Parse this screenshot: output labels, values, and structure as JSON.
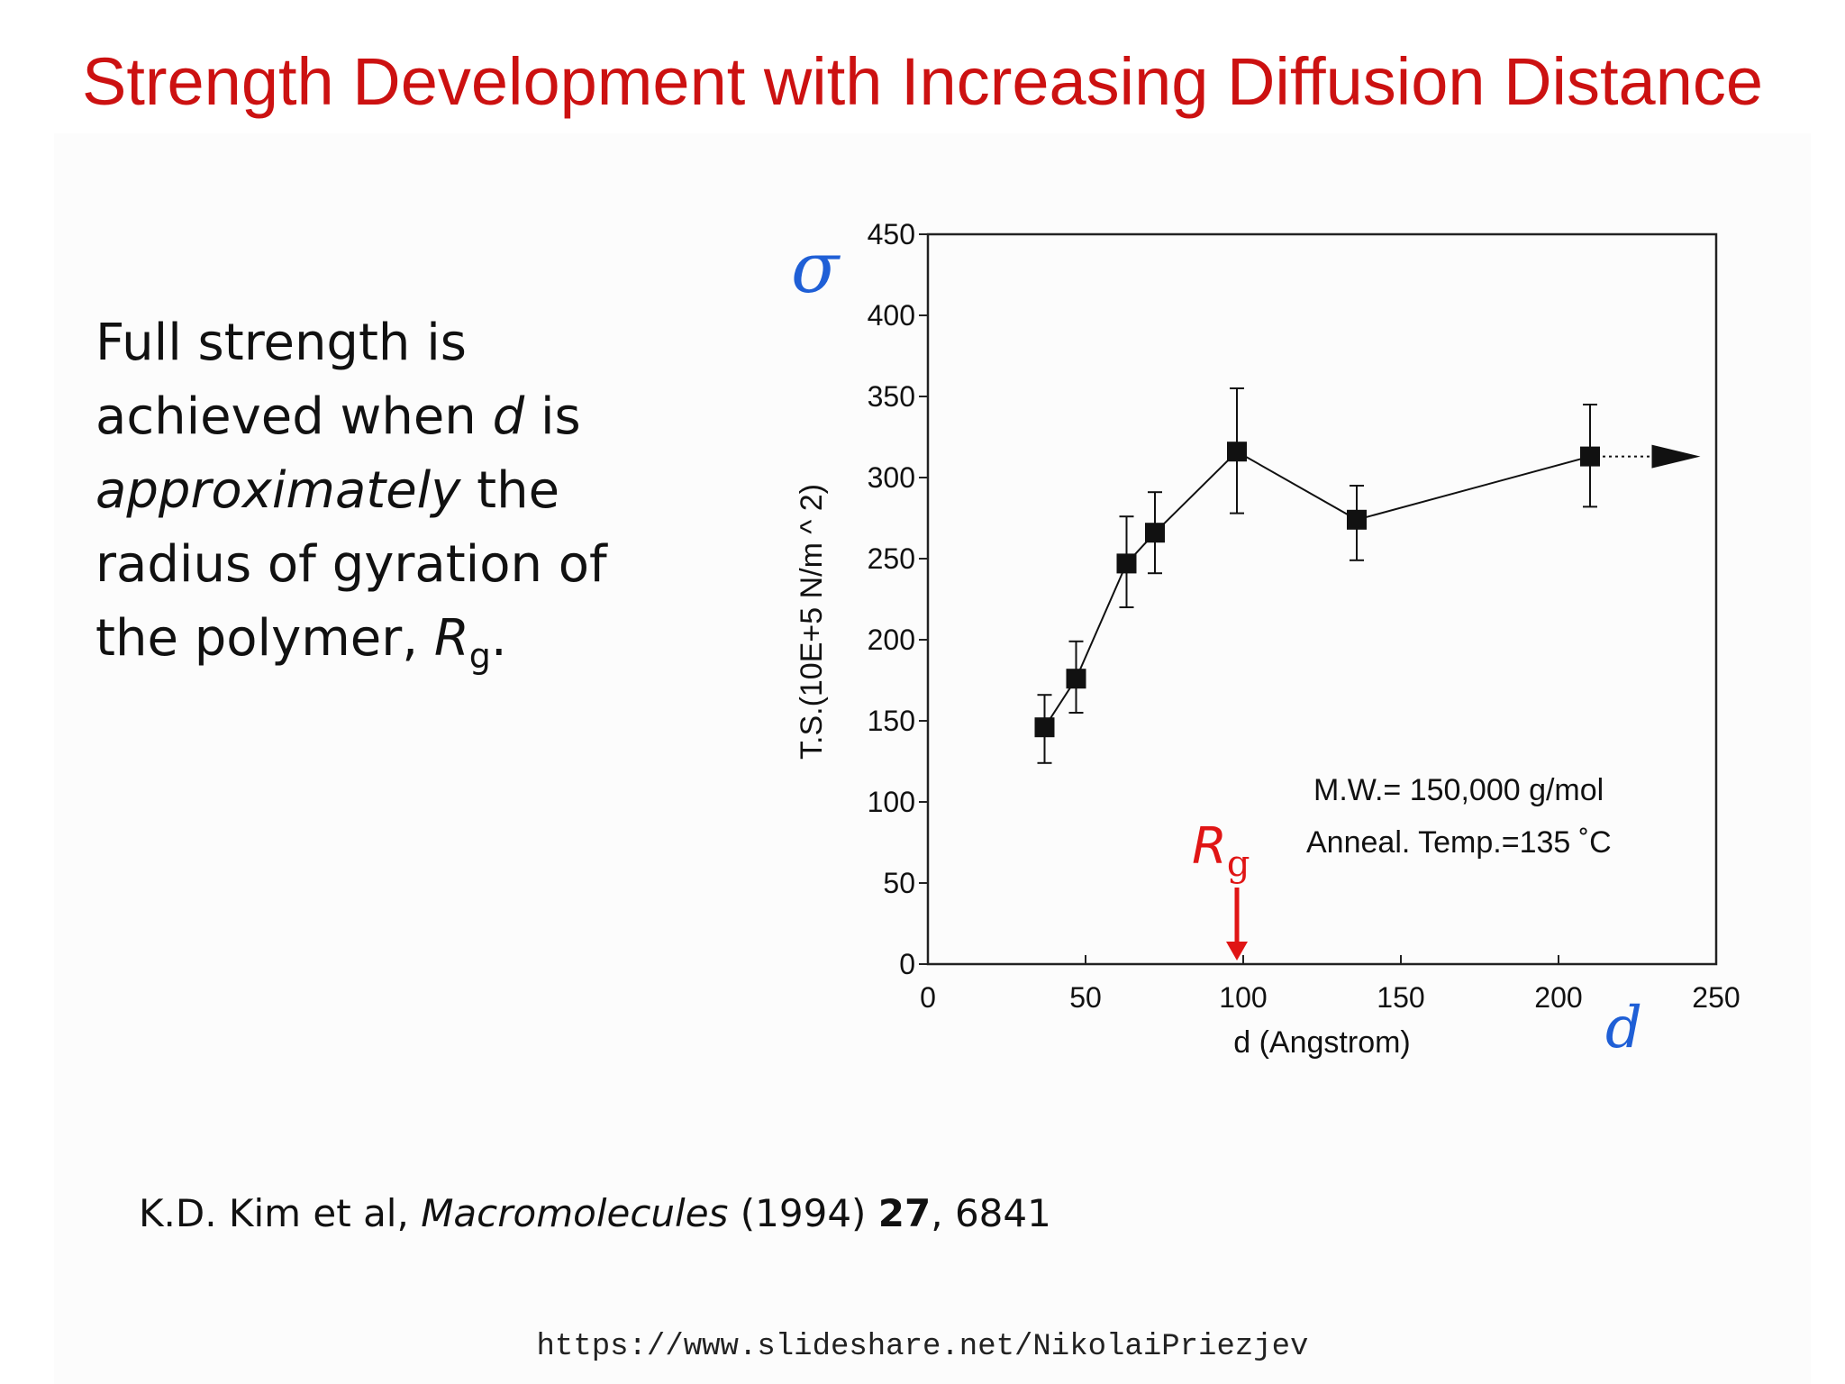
{
  "title": "Strength Development with Increasing Diffusion Distance",
  "body": {
    "line1": "Full strength is",
    "line2_a": "achieved when ",
    "line2_var": "d",
    "line2_b": " is",
    "line3_em": "approximately",
    "line3_b": " the",
    "line4": "radius of gyration of",
    "line5_a": "the polymer, ",
    "line5_var": "R",
    "line5_sub": "g",
    "line5_end": "."
  },
  "citation": {
    "authors": "K.D. Kim et al, ",
    "journal": "Macromolecules",
    "year": " (1994) ",
    "volume": "27",
    "pages": ", 6841"
  },
  "source_url": "https://www.slideshare.net/NikolaiPriezjev",
  "colors": {
    "title": "#cc1111",
    "accent_blue": "#1f5fd6",
    "accent_red": "#e01515",
    "data": "#111111"
  },
  "chart_data": {
    "type": "line",
    "xlabel": "d (Angstrom)",
    "ylabel": "T.S.(10E+5 N/m ^ 2)",
    "xlim": [
      0,
      250
    ],
    "ylim": [
      0,
      450
    ],
    "x_ticks": [
      "0",
      "50",
      "100",
      "150",
      "200",
      "250"
    ],
    "y_ticks": [
      "0",
      "50",
      "100",
      "150",
      "200",
      "250",
      "300",
      "350",
      "400",
      "450"
    ],
    "series": [
      {
        "marker": "square",
        "points": [
          {
            "x": 37,
            "y": 146,
            "err_low": 124,
            "err_high": 166
          },
          {
            "x": 47,
            "y": 176,
            "err_low": 155,
            "err_high": 199
          },
          {
            "x": 63,
            "y": 247,
            "err_low": 220,
            "err_high": 276
          },
          {
            "x": 72,
            "y": 266,
            "err_low": 241,
            "err_high": 291
          },
          {
            "x": 98,
            "y": 316,
            "err_low": 278,
            "err_high": 355
          },
          {
            "x": 136,
            "y": 274,
            "err_low": 249,
            "err_high": 295
          },
          {
            "x": 210,
            "y": 313,
            "err_low": 282,
            "err_high": 345
          }
        ]
      }
    ],
    "continuation_arrow": {
      "from_x": 210,
      "to_x": 245,
      "y": 313
    },
    "annotations": {
      "mw": "M.W.= 150,000 g/mol",
      "anneal": "Anneal. Temp.=135 ˚C",
      "rg_label": "R",
      "rg_sub": "g",
      "rg_x": 98,
      "sigma": "σ",
      "d_symbol": "d"
    }
  }
}
